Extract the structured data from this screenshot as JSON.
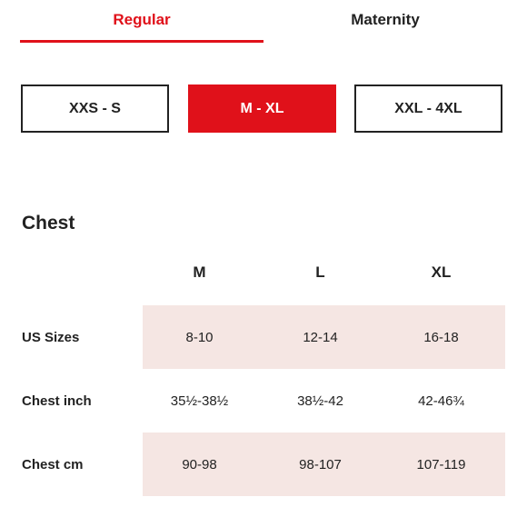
{
  "tabs": [
    {
      "label": "Regular",
      "active": true
    },
    {
      "label": "Maternity",
      "active": false
    }
  ],
  "size_ranges": [
    {
      "label": "XXS - S",
      "active": false
    },
    {
      "label": "M - XL",
      "active": true
    },
    {
      "label": "XXL - 4XL",
      "active": false
    }
  ],
  "section": {
    "title": "Chest"
  },
  "table": {
    "columns": [
      "M",
      "L",
      "XL"
    ],
    "rows": [
      {
        "label": "US Sizes",
        "values": [
          "8-10",
          "12-14",
          "16-18"
        ],
        "shaded": true
      },
      {
        "label": "Chest inch",
        "values": [
          "35½-38½",
          "38½-42",
          "42-46¾"
        ],
        "shaded": false
      },
      {
        "label": "Chest cm",
        "values": [
          "90-98",
          "98-107",
          "107-119"
        ],
        "shaded": true
      }
    ]
  },
  "colors": {
    "accent": "#e0111a",
    "row_shade": "#f5e6e3",
    "text": "#222222"
  }
}
